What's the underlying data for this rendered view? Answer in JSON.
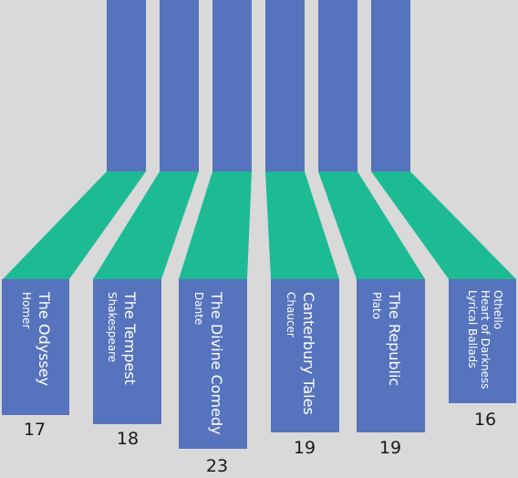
{
  "colors": {
    "background": "#d9d9d9",
    "bar": "#5673bd",
    "connector": "#1dbb94",
    "label": "#ffffff",
    "count": "#1a1a1a"
  },
  "cards": [
    {
      "title": "The Odyssey",
      "author": "Homer",
      "count": "17"
    },
    {
      "title": "The Tempest",
      "author": "Shakespeare",
      "count": "18"
    },
    {
      "title": "The Divine Comedy",
      "author": "Dante",
      "count": "23"
    },
    {
      "title": "Canterbury Tales",
      "author": "Chaucer",
      "count": "19"
    },
    {
      "title": "The Republic",
      "author": "Plato",
      "count": "19"
    },
    {
      "title": "",
      "lines": [
        "Othello",
        "Heart of Darkness",
        "Lyrical Ballads"
      ],
      "count": "16"
    }
  ]
}
